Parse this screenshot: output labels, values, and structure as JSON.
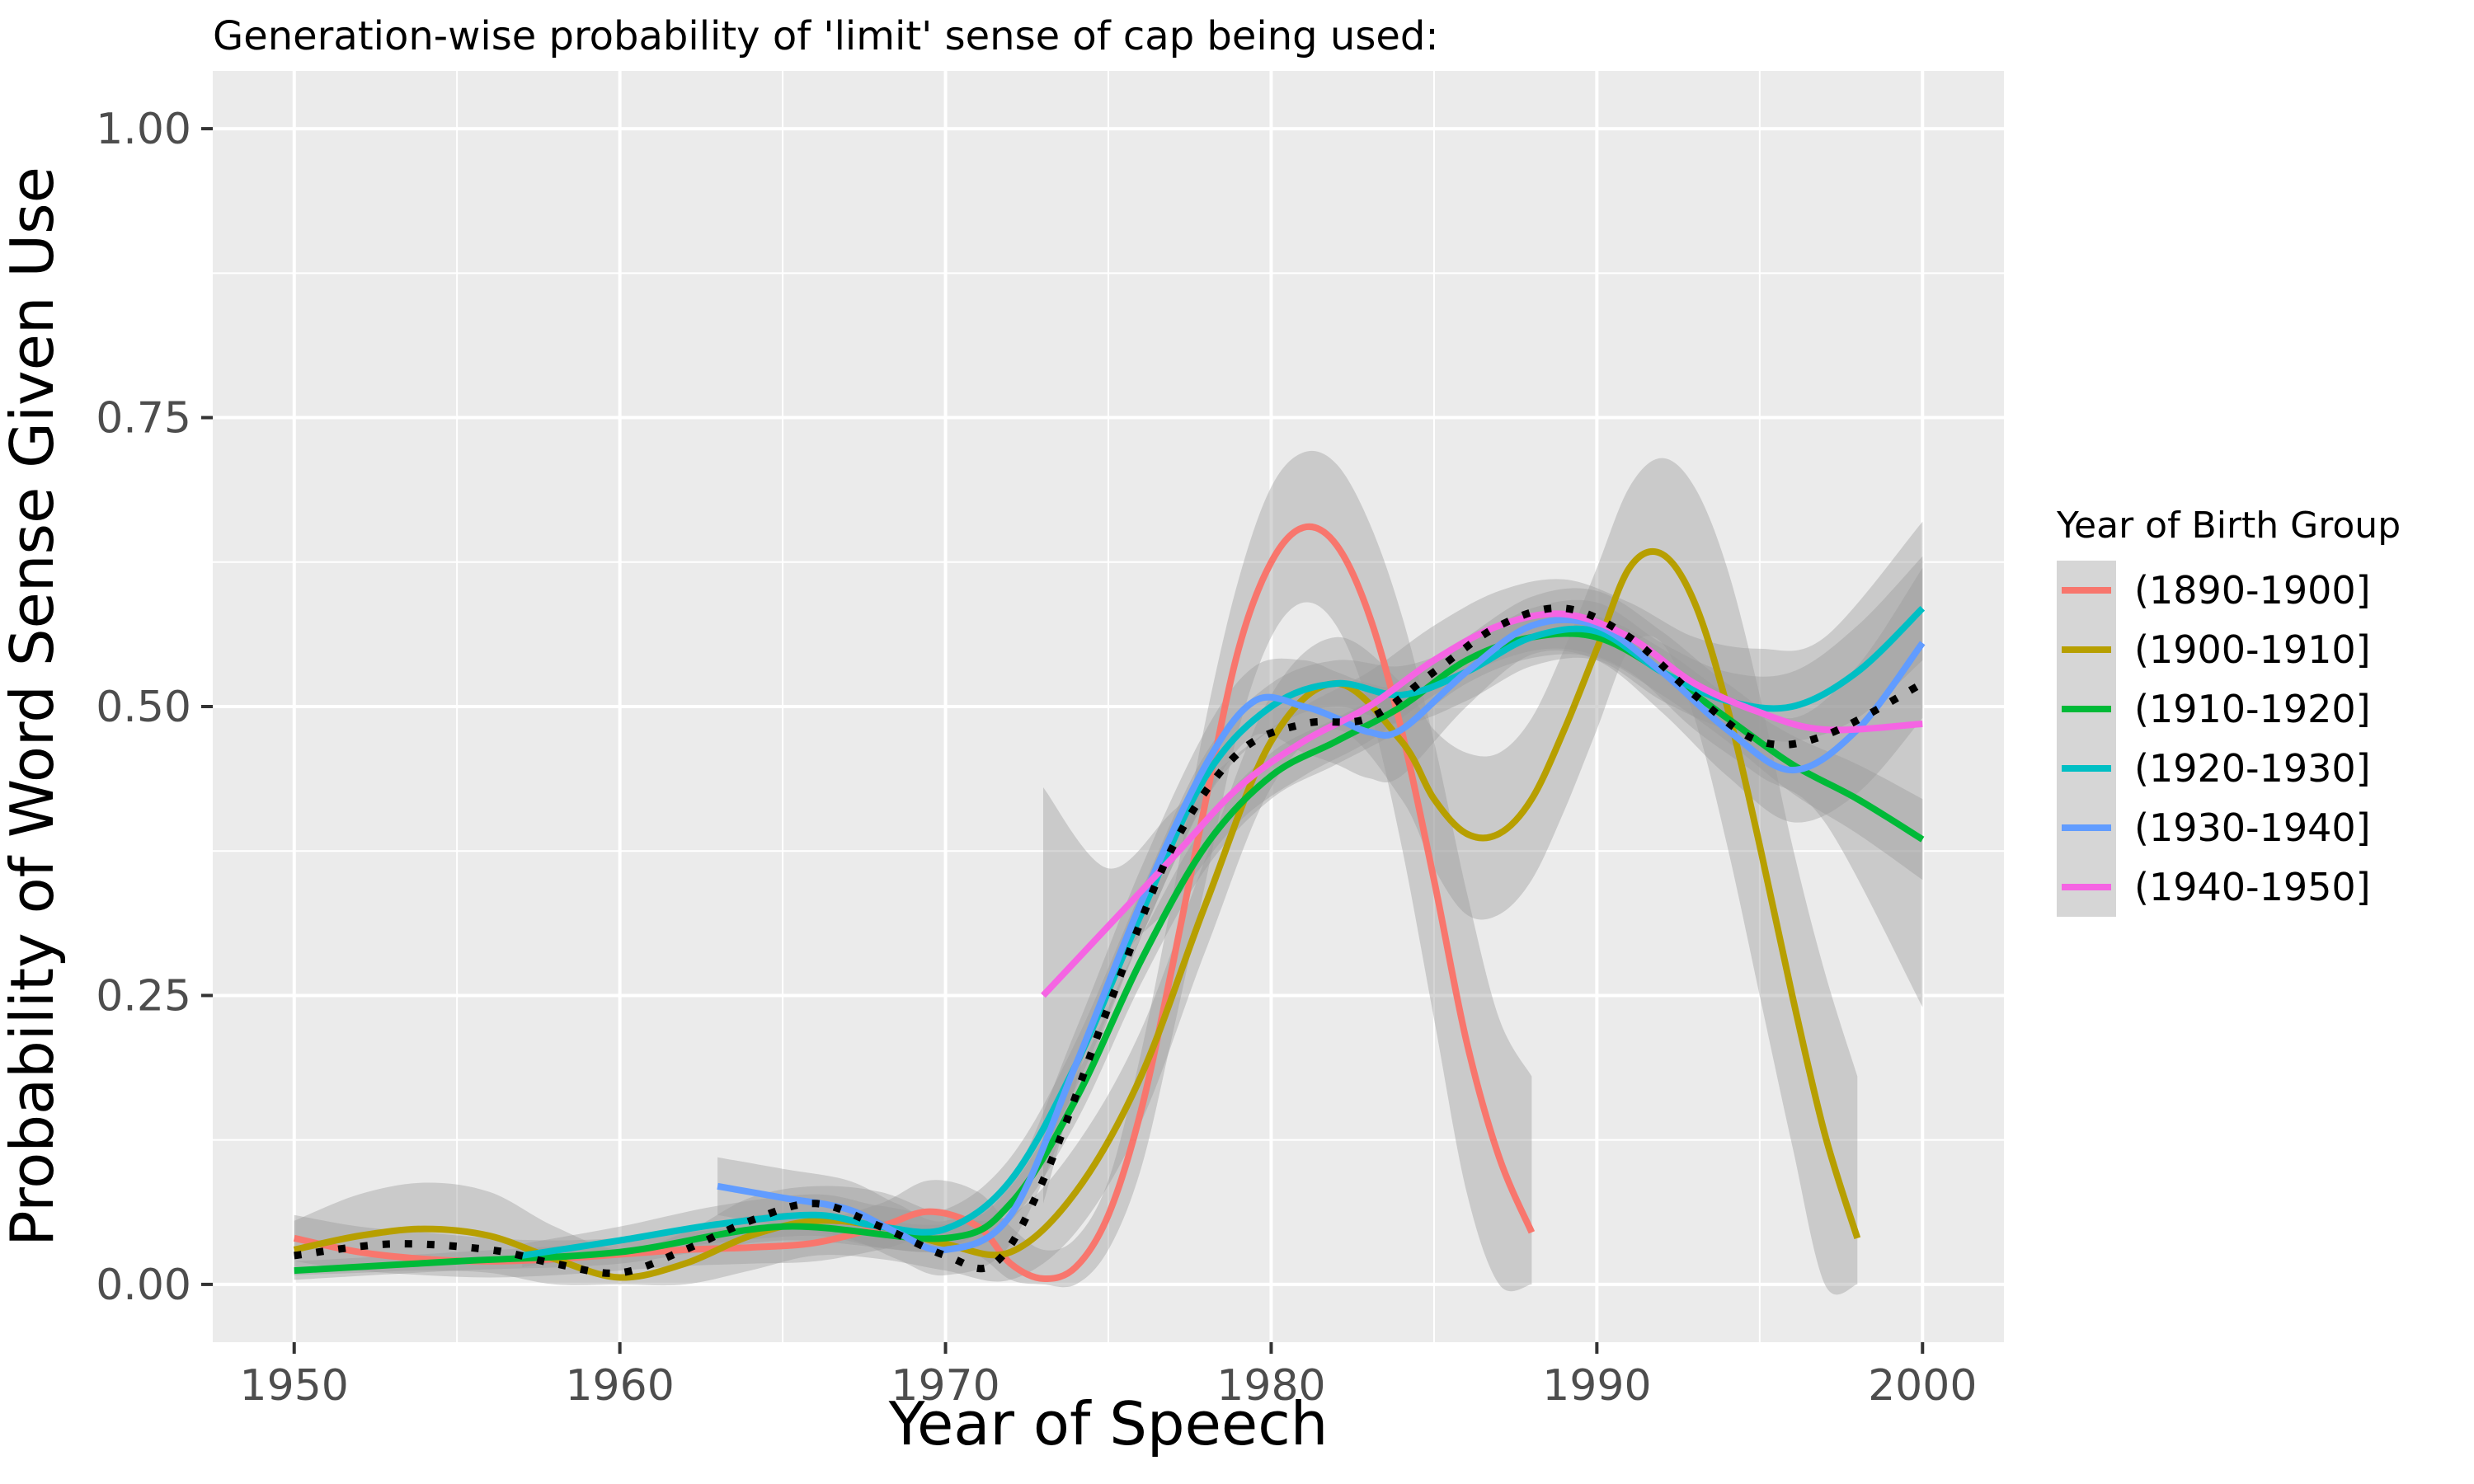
{
  "chart_data": {
    "type": "line",
    "title": "Generation-wise probability of 'limit' sense of cap being used:",
    "xlabel": "Year of Speech",
    "ylabel": "Probability of Word Sense Given Use",
    "xlim": [
      1947.5,
      2002.5
    ],
    "ylim": [
      -0.05,
      1.05
    ],
    "x_ticks": [
      1950,
      1960,
      1970,
      1980,
      1990,
      2000
    ],
    "x_tick_labels": [
      "1950",
      "1960",
      "1970",
      "1980",
      "1990",
      "2000"
    ],
    "y_ticks": [
      0,
      0.25,
      0.5,
      0.75,
      1
    ],
    "y_tick_labels": [
      "0.00",
      "0.25",
      "0.50",
      "0.75",
      "1.00"
    ],
    "grid": true,
    "panel_background": "#EBEBEB",
    "ribbon_color": "#999999",
    "legend": {
      "title": "Year of Birth Group",
      "placement": "right"
    },
    "series": [
      {
        "name": "(1890-1900]",
        "color": "#F8766D",
        "x": [
          1950,
          1952,
          1954,
          1956,
          1958,
          1960,
          1962,
          1964,
          1966,
          1968,
          1969.5,
          1971,
          1972,
          1973,
          1974,
          1975,
          1976,
          1977,
          1978,
          1979,
          1980,
          1981,
          1982,
          1983,
          1984,
          1985,
          1986,
          1987,
          1988
        ],
        "y": [
          0.04,
          0.028,
          0.022,
          0.02,
          0.022,
          0.026,
          0.03,
          0.032,
          0.036,
          0.05,
          0.063,
          0.05,
          0.018,
          0.005,
          0.015,
          0.06,
          0.15,
          0.28,
          0.42,
          0.55,
          0.625,
          0.655,
          0.64,
          0.58,
          0.48,
          0.35,
          0.21,
          0.11,
          0.045
        ],
        "ribbon_upper": [
          0.06,
          0.05,
          0.045,
          0.04,
          0.038,
          0.04,
          0.045,
          0.05,
          0.055,
          0.07,
          0.09,
          0.08,
          0.05,
          0.03,
          0.04,
          0.09,
          0.2,
          0.34,
          0.49,
          0.61,
          0.69,
          0.72,
          0.71,
          0.66,
          0.58,
          0.47,
          0.34,
          0.23,
          0.18
        ],
        "ribbon_lower": [
          0.02,
          0.012,
          0.008,
          0.006,
          0.008,
          0.012,
          0.016,
          0.018,
          0.02,
          0.03,
          0.04,
          0.025,
          0.004,
          0,
          0,
          0.03,
          0.1,
          0.22,
          0.35,
          0.48,
          0.56,
          0.59,
          0.57,
          0.5,
          0.38,
          0.23,
          0.08,
          0,
          0
        ]
      },
      {
        "name": "(1900-1910]",
        "color": "#B79F00",
        "x": [
          1950,
          1952,
          1954,
          1956,
          1958,
          1960,
          1962,
          1964,
          1966,
          1968,
          1970,
          1972,
          1974,
          1976,
          1978,
          1980,
          1982,
          1984,
          1985,
          1986,
          1987,
          1988,
          1989,
          1990,
          1991,
          1992,
          1993,
          1994,
          1995,
          1996,
          1997,
          1998
        ],
        "y": [
          0.03,
          0.042,
          0.048,
          0.042,
          0.022,
          0.006,
          0.018,
          0.042,
          0.055,
          0.05,
          0.035,
          0.028,
          0.08,
          0.18,
          0.33,
          0.47,
          0.52,
          0.47,
          0.42,
          0.39,
          0.39,
          0.42,
          0.48,
          0.55,
          0.62,
          0.632,
          0.59,
          0.5,
          0.38,
          0.25,
          0.13,
          0.04
        ],
        "ribbon_upper": [
          0.055,
          0.078,
          0.088,
          0.08,
          0.05,
          0.03,
          0.045,
          0.075,
          0.085,
          0.08,
          0.06,
          0.06,
          0.12,
          0.22,
          0.37,
          0.51,
          0.56,
          0.52,
          0.48,
          0.46,
          0.46,
          0.49,
          0.55,
          0.62,
          0.69,
          0.715,
          0.69,
          0.62,
          0.51,
          0.38,
          0.27,
          0.18
        ],
        "ribbon_lower": [
          0.008,
          0.01,
          0.012,
          0.01,
          0,
          0,
          0,
          0.012,
          0.025,
          0.022,
          0.012,
          0.004,
          0.045,
          0.14,
          0.29,
          0.43,
          0.48,
          0.42,
          0.36,
          0.32,
          0.32,
          0.35,
          0.41,
          0.48,
          0.55,
          0.555,
          0.49,
          0.38,
          0.25,
          0.12,
          0,
          0
        ]
      },
      {
        "name": "(1910-1920]",
        "color": "#00BA38",
        "x": [
          1950,
          1955,
          1960,
          1965,
          1970,
          1972,
          1974,
          1976,
          1978,
          1980,
          1982,
          1984,
          1986,
          1988,
          1990,
          1992,
          1994,
          1996,
          1998,
          2000
        ],
        "y": [
          0.012,
          0.02,
          0.028,
          0.05,
          0.04,
          0.07,
          0.16,
          0.28,
          0.38,
          0.44,
          0.47,
          0.5,
          0.54,
          0.56,
          0.56,
          0.53,
          0.49,
          0.45,
          0.42,
          0.385
        ],
        "ribbon_upper": [
          0.02,
          0.028,
          0.038,
          0.062,
          0.052,
          0.085,
          0.18,
          0.3,
          0.4,
          0.46,
          0.49,
          0.52,
          0.56,
          0.578,
          0.578,
          0.55,
          0.51,
          0.475,
          0.45,
          0.42
        ],
        "ribbon_lower": [
          0.004,
          0.012,
          0.018,
          0.038,
          0.028,
          0.055,
          0.14,
          0.26,
          0.36,
          0.42,
          0.45,
          0.48,
          0.52,
          0.542,
          0.542,
          0.51,
          0.47,
          0.425,
          0.39,
          0.35
        ]
      },
      {
        "name": "(1920-1930]",
        "color": "#00BFC4",
        "x": [
          1957,
          1960,
          1963,
          1966,
          1968,
          1970,
          1972,
          1974,
          1976,
          1978,
          1980,
          1982,
          1984,
          1986,
          1988,
          1990,
          1992,
          1994,
          1996,
          1998,
          2000
        ],
        "y": [
          0.025,
          0.038,
          0.052,
          0.06,
          0.05,
          0.048,
          0.09,
          0.19,
          0.32,
          0.44,
          0.5,
          0.52,
          0.51,
          0.53,
          0.56,
          0.565,
          0.53,
          0.505,
          0.5,
          0.53,
          0.585
        ],
        "ribbon_upper": [
          0.035,
          0.05,
          0.068,
          0.078,
          0.068,
          0.065,
          0.11,
          0.21,
          0.34,
          0.46,
          0.52,
          0.54,
          0.535,
          0.555,
          0.585,
          0.59,
          0.555,
          0.53,
          0.53,
          0.57,
          0.63
        ],
        "ribbon_lower": [
          0.015,
          0.026,
          0.036,
          0.042,
          0.032,
          0.031,
          0.07,
          0.17,
          0.3,
          0.42,
          0.48,
          0.5,
          0.485,
          0.505,
          0.535,
          0.54,
          0.505,
          0.48,
          0.47,
          0.49,
          0.54
        ]
      },
      {
        "name": "(1930-1940]",
        "color": "#619CFF",
        "x": [
          1963,
          1965,
          1967,
          1968.5,
          1970,
          1972,
          1974,
          1976,
          1978,
          1979.5,
          1981,
          1982,
          1983,
          1984,
          1986,
          1988,
          1990,
          1992,
          1994,
          1996,
          1998,
          2000
        ],
        "y": [
          0.085,
          0.075,
          0.065,
          0.045,
          0.03,
          0.06,
          0.19,
          0.33,
          0.45,
          0.505,
          0.5,
          0.49,
          0.478,
          0.48,
          0.53,
          0.57,
          0.57,
          0.53,
          0.48,
          0.445,
          0.48,
          0.555
        ],
        "ribbon_upper": [
          0.11,
          0.1,
          0.09,
          0.07,
          0.055,
          0.09,
          0.22,
          0.36,
          0.48,
          0.535,
          0.54,
          0.53,
          0.52,
          0.52,
          0.56,
          0.595,
          0.6,
          0.565,
          0.52,
          0.49,
          0.535,
          0.62
        ],
        "ribbon_lower": [
          0.06,
          0.05,
          0.04,
          0.022,
          0.008,
          0.035,
          0.16,
          0.3,
          0.42,
          0.475,
          0.46,
          0.45,
          0.438,
          0.44,
          0.5,
          0.545,
          0.54,
          0.495,
          0.44,
          0.4,
          0.425,
          0.49
        ]
      },
      {
        "name": "(1940-1950]",
        "color": "#F564E3",
        "x": [
          1973,
          1975,
          1977,
          1979,
          1981,
          1983,
          1985,
          1987,
          1989,
          1991,
          1993,
          1995,
          1997,
          2000
        ],
        "y": [
          0.25,
          0.31,
          0.37,
          0.43,
          0.47,
          0.5,
          0.54,
          0.57,
          0.58,
          0.56,
          0.52,
          0.495,
          0.48,
          0.485
        ],
        "ribbon_upper": [
          0.43,
          0.36,
          0.41,
          0.46,
          0.5,
          0.53,
          0.57,
          0.6,
          0.61,
          0.59,
          0.56,
          0.55,
          0.56,
          0.66
        ],
        "ribbon_lower": [
          0.07,
          0.26,
          0.33,
          0.4,
          0.44,
          0.47,
          0.51,
          0.54,
          0.55,
          0.53,
          0.48,
          0.44,
          0.4,
          0.24
        ]
      }
    ],
    "overall_trend": {
      "style": "dotted",
      "color": "#000000",
      "x": [
        1950,
        1953,
        1956,
        1958,
        1960,
        1962,
        1964,
        1966,
        1968,
        1970,
        1971.5,
        1973,
        1975,
        1977,
        1979,
        1981,
        1983,
        1985,
        1987,
        1989,
        1991,
        1993,
        1995,
        1997,
        2000
      ],
      "y": [
        0.025,
        0.035,
        0.03,
        0.018,
        0.01,
        0.03,
        0.055,
        0.07,
        0.05,
        0.025,
        0.018,
        0.09,
        0.24,
        0.38,
        0.46,
        0.485,
        0.49,
        0.53,
        0.57,
        0.585,
        0.56,
        0.51,
        0.47,
        0.475,
        0.52
      ]
    }
  }
}
